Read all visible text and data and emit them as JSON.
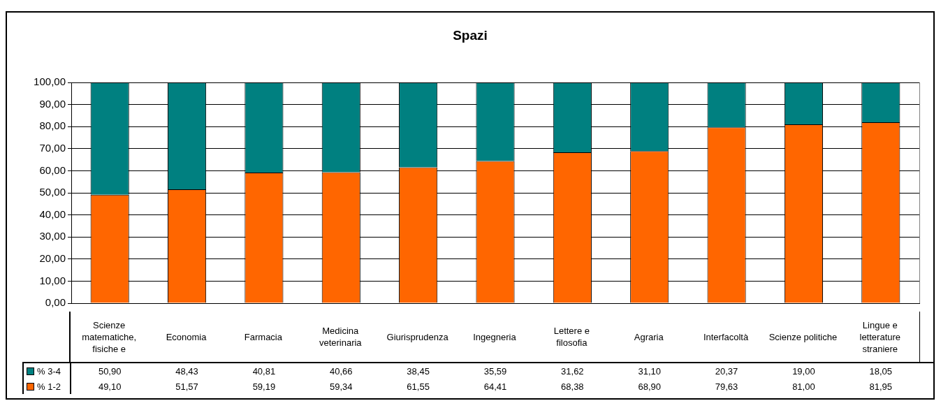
{
  "chart_data": {
    "type": "bar",
    "title": "Spazi",
    "stacked": true,
    "grid": "y",
    "legend": "bottom",
    "categories": [
      "Scienze matematiche, fisiche e",
      "Economia",
      "Farmacia",
      "Medicina veterinaria",
      "Giurisprudenza",
      "Ingegneria",
      "Lettere e filosofia",
      "Agraria",
      "Interfacoltà",
      "Scienze politiche",
      "Lingue e letterature straniere"
    ],
    "series": [
      {
        "name": "% 1-2",
        "color": "#ff6600",
        "values": [
          49.1,
          51.57,
          59.19,
          59.34,
          61.55,
          64.41,
          68.38,
          68.9,
          79.63,
          81.0,
          81.95
        ],
        "value_labels": [
          "49,10",
          "51,57",
          "59,19",
          "59,34",
          "61,55",
          "64,41",
          "68,38",
          "68,90",
          "79,63",
          "81,00",
          "81,95"
        ]
      },
      {
        "name": "% 3-4",
        "color": "#008080",
        "values": [
          50.9,
          48.43,
          40.81,
          40.66,
          38.45,
          35.59,
          31.62,
          31.1,
          20.37,
          19.0,
          18.05
        ],
        "value_labels": [
          "50,90",
          "48,43",
          "40,81",
          "40,66",
          "38,45",
          "35,59",
          "31,62",
          "31,10",
          "20,37",
          "19,00",
          "18,05"
        ]
      }
    ],
    "ylim": [
      0,
      100
    ],
    "yticks": [
      {
        "value": 0,
        "label": "0,00"
      },
      {
        "value": 10,
        "label": "10,00"
      },
      {
        "value": 20,
        "label": "20,00"
      },
      {
        "value": 30,
        "label": "30,00"
      },
      {
        "value": 40,
        "label": "40,00"
      },
      {
        "value": 50,
        "label": "50,00"
      },
      {
        "value": 60,
        "label": "60,00"
      },
      {
        "value": 70,
        "label": "70,00"
      },
      {
        "value": 80,
        "label": "80,00"
      },
      {
        "value": 90,
        "label": "90,00"
      },
      {
        "value": 100,
        "label": "100,00"
      }
    ]
  }
}
